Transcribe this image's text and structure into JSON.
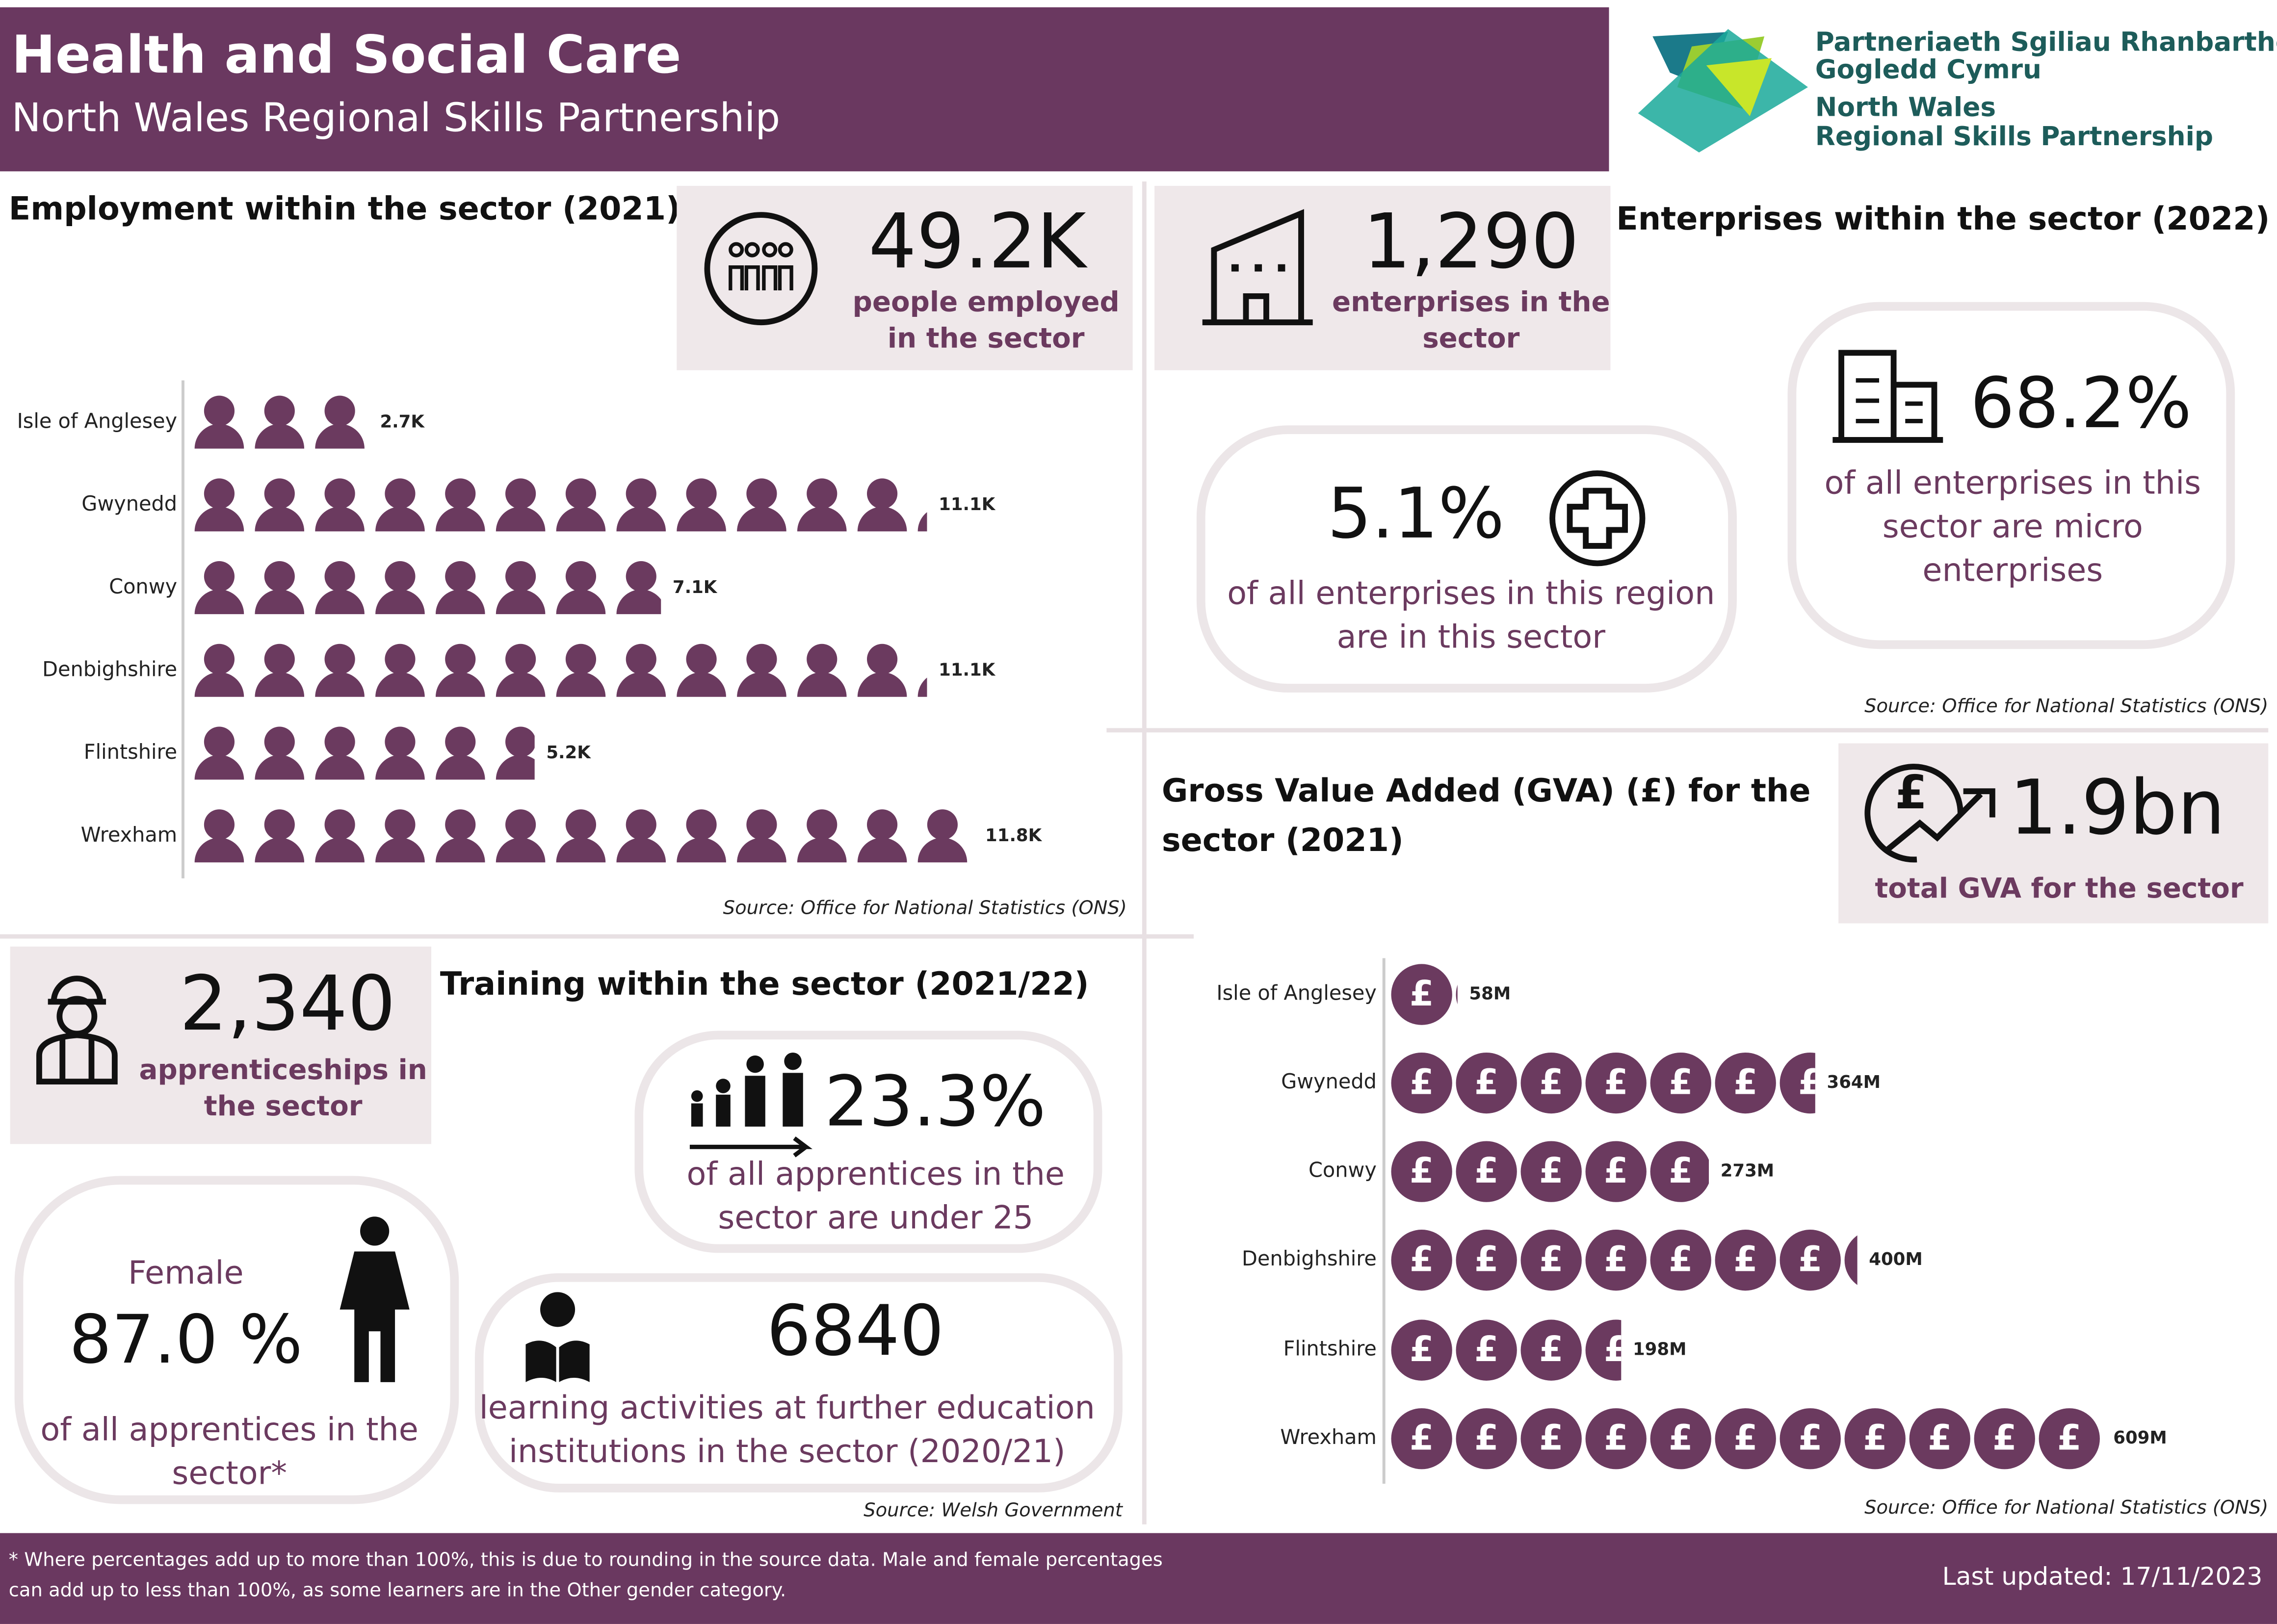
{
  "header": {
    "title": "Health and Social Care",
    "subtitle": "North Wales Regional Skills Partnership",
    "logo": [
      "Partneriaeth Sgiliau Rhanbarthol",
      "Gogledd Cymru",
      "North Wales",
      "Regional Skills Partnership"
    ]
  },
  "employment": {
    "title": "Employment within the sector (2021)",
    "kpi": "49.2K",
    "kpi_label": [
      "people employed",
      "in the sector"
    ],
    "source": "Source: Office for National Statistics (ONS)"
  },
  "enterprises": {
    "title": "Enterprises within the sector (2022)",
    "kpi": "1,290",
    "kpi_label": [
      "enterprises in the",
      "sector"
    ],
    "region_share": "5.1%",
    "region_share_label": [
      "of all enterprises in this region",
      "are in this sector"
    ],
    "micro_share": "68.2%",
    "micro_share_label": [
      "of all enterprises in this",
      "sector are micro",
      "enterprises"
    ],
    "source": "Source: Office for National Statistics (ONS)"
  },
  "gva": {
    "title": [
      "Gross Value Added (GVA) (£) for the",
      "sector (2021)"
    ],
    "kpi": "1.9bn",
    "kpi_label": "total GVA for the sector",
    "source": "Source: Office for National Statistics (ONS)"
  },
  "training": {
    "title": "Training within the sector (2021/22)",
    "kpi": "2,340",
    "kpi_label": [
      "apprenticeships in",
      "the sector"
    ],
    "under25": "23.3%",
    "under25_label": [
      "of all apprentices in the",
      "sector are under 25"
    ],
    "female_heading": "Female",
    "female": "87.0 %",
    "female_label": [
      "of all apprentices in the",
      "sector*"
    ],
    "fe": "6840",
    "fe_label": [
      "learning activities at further education",
      "institutions in the sector (2020/21)"
    ],
    "source": "Source: Welsh Government"
  },
  "footer": {
    "note": [
      "* Where percentages add up to more than 100%, this is due to rounding in the source data. Male and female percentages",
      "can add up to less than 100%, as some learners are in the Other gender category."
    ],
    "updated": "Last updated: 17/11/2023"
  },
  "chart_data": [
    {
      "type": "pictogram",
      "icon": "person",
      "color": "#6b3a5f",
      "categories": [
        "Isle of Anglesey",
        "Gwynedd",
        "Conwy",
        "Denbighshire",
        "Flintshire",
        "Wrexham"
      ],
      "values": [
        2.7,
        11.1,
        7.1,
        11.1,
        5.2,
        11.8
      ],
      "value_labels": [
        "2.7K",
        "11.1K",
        "7.1K",
        "11.1K",
        "5.2K",
        "11.8K"
      ]
    },
    {
      "type": "pictogram",
      "icon": "pound",
      "color": "#6b3a5f",
      "categories": [
        "Isle of Anglesey",
        "Gwynedd",
        "Conwy",
        "Denbighshire",
        "Flintshire",
        "Wrexham"
      ],
      "values": [
        58,
        364,
        273,
        400,
        198,
        609
      ],
      "value_labels": [
        "58M",
        "364M",
        "273M",
        "400M",
        "198M",
        "609M"
      ]
    }
  ]
}
